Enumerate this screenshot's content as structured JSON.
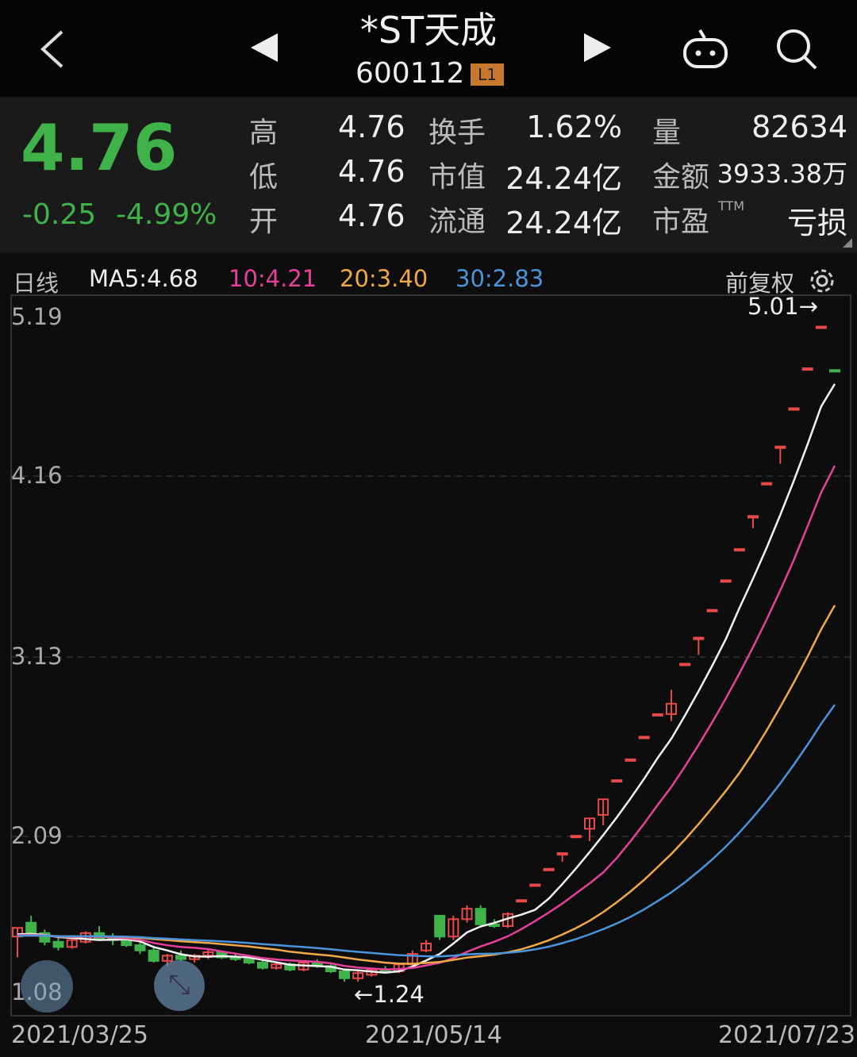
{
  "header": {
    "title": "*ST天成",
    "code": "600112",
    "badge": "L1"
  },
  "quote": {
    "price": "4.76",
    "change": "-0.25",
    "change_pct": "-4.99%",
    "rows": [
      {
        "l1": "高",
        "v1": "4.76",
        "l2": "换手",
        "v2": "1.62%",
        "l3": "量",
        "v3": "82634"
      },
      {
        "l1": "低",
        "v1": "4.76",
        "l2": "市值",
        "v2": "24.24亿",
        "l3": "金额",
        "v3": "3933.38万"
      },
      {
        "l1": "开",
        "v1": "4.76",
        "l2": "流通",
        "v2": "24.24亿",
        "l3": "市盈",
        "v3": "亏损"
      }
    ],
    "ttm": "TTM"
  },
  "chart_header": {
    "period": "日线",
    "ma5": "MA5:4.68",
    "ma10": "10:4.21",
    "ma20": "20:3.40",
    "ma30": "30:2.83",
    "adjust": "前复权"
  },
  "colors": {
    "up": "#e84a4a",
    "down": "#3fb24a",
    "ma5": "#f0f0f0",
    "ma10": "#e6409a",
    "ma20": "#f0a848",
    "ma30": "#4a94dc"
  },
  "chart_data": {
    "type": "candlestick",
    "yticks": [
      "5.19",
      "4.16",
      "3.13",
      "2.09",
      "1.08"
    ],
    "ylim": [
      1.08,
      5.19
    ],
    "xticks": [
      "2021/03/25",
      "2021/05/14",
      "2021/07/23"
    ],
    "max_label": "5.01→",
    "min_label": "←1.24",
    "ma_periods": [
      5,
      10,
      20,
      30
    ],
    "candles": [
      [
        1.5,
        1.55,
        1.38,
        1.55
      ],
      [
        1.58,
        1.62,
        1.5,
        1.52
      ],
      [
        1.52,
        1.54,
        1.45,
        1.47
      ],
      [
        1.47,
        1.5,
        1.42,
        1.44
      ],
      [
        1.44,
        1.49,
        1.43,
        1.48
      ],
      [
        1.47,
        1.53,
        1.46,
        1.52
      ],
      [
        1.52,
        1.56,
        1.48,
        1.49
      ],
      [
        1.5,
        1.52,
        1.45,
        1.48
      ],
      [
        1.48,
        1.5,
        1.44,
        1.45
      ],
      [
        1.45,
        1.47,
        1.4,
        1.42
      ],
      [
        1.42,
        1.44,
        1.35,
        1.36
      ],
      [
        1.36,
        1.4,
        1.33,
        1.39
      ],
      [
        1.39,
        1.42,
        1.36,
        1.37
      ],
      [
        1.37,
        1.4,
        1.35,
        1.39
      ],
      [
        1.39,
        1.43,
        1.37,
        1.41
      ],
      [
        1.41,
        1.42,
        1.37,
        1.38
      ],
      [
        1.38,
        1.4,
        1.36,
        1.37
      ],
      [
        1.37,
        1.39,
        1.34,
        1.35
      ],
      [
        1.35,
        1.36,
        1.31,
        1.32
      ],
      [
        1.32,
        1.35,
        1.31,
        1.34
      ],
      [
        1.34,
        1.35,
        1.3,
        1.31
      ],
      [
        1.31,
        1.36,
        1.3,
        1.35
      ],
      [
        1.35,
        1.37,
        1.32,
        1.33
      ],
      [
        1.33,
        1.34,
        1.29,
        1.3
      ],
      [
        1.3,
        1.31,
        1.24,
        1.26
      ],
      [
        1.26,
        1.3,
        1.24,
        1.29
      ],
      [
        1.28,
        1.32,
        1.27,
        1.31
      ],
      [
        1.31,
        1.33,
        1.29,
        1.3
      ],
      [
        1.3,
        1.35,
        1.29,
        1.34
      ],
      [
        1.34,
        1.42,
        1.33,
        1.4
      ],
      [
        1.42,
        1.48,
        1.41,
        1.46
      ],
      [
        1.62,
        1.62,
        1.48,
        1.5
      ],
      [
        1.5,
        1.62,
        1.48,
        1.6
      ],
      [
        1.6,
        1.68,
        1.58,
        1.66
      ],
      [
        1.66,
        1.68,
        1.56,
        1.57
      ],
      [
        1.57,
        1.6,
        1.55,
        1.56
      ],
      [
        1.56,
        1.64,
        1.55,
        1.63
      ],
      [
        1.71,
        1.71,
        1.71,
        1.71
      ],
      [
        1.8,
        1.8,
        1.8,
        1.8
      ],
      [
        1.89,
        1.89,
        1.89,
        1.89
      ],
      [
        1.98,
        1.98,
        1.93,
        1.98
      ],
      [
        2.08,
        2.08,
        2.08,
        2.08
      ],
      [
        2.12,
        2.18,
        2.05,
        2.18
      ],
      [
        2.2,
        2.29,
        2.14,
        2.29
      ],
      [
        2.4,
        2.4,
        2.4,
        2.4
      ],
      [
        2.52,
        2.52,
        2.52,
        2.52
      ],
      [
        2.65,
        2.65,
        2.65,
        2.65
      ],
      [
        2.78,
        2.78,
        2.78,
        2.78
      ],
      [
        2.78,
        2.92,
        2.74,
        2.84
      ],
      [
        3.07,
        3.07,
        3.07,
        3.07
      ],
      [
        3.22,
        3.22,
        3.12,
        3.22
      ],
      [
        3.38,
        3.38,
        3.38,
        3.38
      ],
      [
        3.55,
        3.55,
        3.55,
        3.55
      ],
      [
        3.73,
        3.73,
        3.73,
        3.73
      ],
      [
        3.92,
        3.92,
        3.85,
        3.92
      ],
      [
        4.11,
        4.11,
        4.11,
        4.11
      ],
      [
        4.32,
        4.32,
        4.22,
        4.32
      ],
      [
        4.54,
        4.54,
        4.54,
        4.54
      ],
      [
        4.77,
        4.77,
        4.77,
        4.77
      ],
      [
        5.01,
        5.01,
        5.01,
        5.01
      ],
      [
        4.76,
        4.76,
        4.76,
        4.76
      ]
    ]
  }
}
